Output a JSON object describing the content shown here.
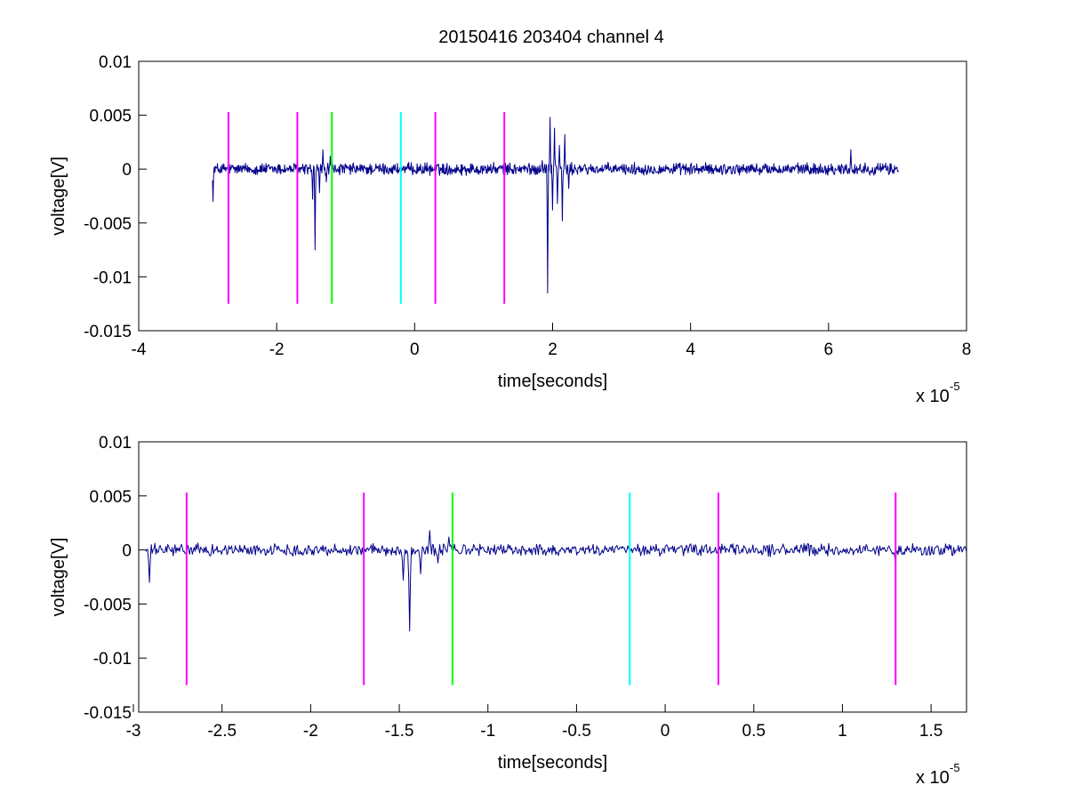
{
  "figure": {
    "title": "20150416 203404 channel 4"
  },
  "chart_data": [
    {
      "type": "line",
      "title": "20150416 203404 channel 4",
      "xlabel": "time[seconds]",
      "ylabel": "voltage[V]",
      "x_exponent_label": "x 10",
      "x_exponent_power": "-5",
      "xlim": [
        -4e-05,
        8e-05
      ],
      "ylim": [
        -0.015,
        0.01
      ],
      "xticks": [
        -4e-05,
        -2e-05,
        0,
        2e-05,
        4e-05,
        6e-05,
        8e-05
      ],
      "xtick_labels": [
        "-4",
        "-2",
        "0",
        "2",
        "4",
        "6",
        "8"
      ],
      "yticks": [
        -0.015,
        -0.01,
        -0.005,
        0,
        0.005,
        0.01
      ],
      "ytick_labels": [
        "-0.015",
        "-0.01",
        "-0.005",
        "0",
        "0.005",
        "0.01"
      ],
      "grid": false,
      "signal_color": "#00008b",
      "signal": {
        "t_start": -2.93e-05,
        "t_end": 7.02e-05,
        "baseline": 0,
        "events": [
          {
            "t": -2.92e-05,
            "v": -0.003
          },
          {
            "t": -1.48e-05,
            "v": -0.0028
          },
          {
            "t": -1.44e-05,
            "v": -0.0075
          },
          {
            "t": -1.38e-05,
            "v": -0.0022
          },
          {
            "t": -1.33e-05,
            "v": 0.0018
          },
          {
            "t": -1.28e-05,
            "v": -0.0012
          },
          {
            "t": -1.22e-05,
            "v": 0.0012
          },
          {
            "t": 1.85e-05,
            "v": 0.0008
          },
          {
            "t": 1.93e-05,
            "v": -0.0115
          },
          {
            "t": 1.96e-05,
            "v": 0.0048
          },
          {
            "t": 2e-05,
            "v": -0.0038
          },
          {
            "t": 2.03e-05,
            "v": 0.0038
          },
          {
            "t": 2.07e-05,
            "v": -0.0032
          },
          {
            "t": 2.1e-05,
            "v": 0.0022
          },
          {
            "t": 2.14e-05,
            "v": -0.0048
          },
          {
            "t": 2.18e-05,
            "v": 0.0032
          },
          {
            "t": 2.23e-05,
            "v": -0.0018
          },
          {
            "t": 6.32e-05,
            "v": 0.0018
          }
        ]
      },
      "markers": [
        {
          "x": -2.7e-05,
          "y_min": -0.0125,
          "y_max": 0.0053,
          "color": "#ff00ff"
        },
        {
          "x": -1.7e-05,
          "y_min": -0.0125,
          "y_max": 0.0053,
          "color": "#ff00ff"
        },
        {
          "x": -1.2e-05,
          "y_min": -0.0125,
          "y_max": 0.0053,
          "color": "#00ff00"
        },
        {
          "x": -2e-06,
          "y_min": -0.0125,
          "y_max": 0.0053,
          "color": "#00ffff"
        },
        {
          "x": 3e-06,
          "y_min": -0.0125,
          "y_max": 0.0053,
          "color": "#ff00ff"
        },
        {
          "x": 1.3e-05,
          "y_min": -0.0125,
          "y_max": 0.0053,
          "color": "#ff00ff"
        }
      ]
    },
    {
      "type": "line",
      "title": "",
      "xlabel": "time[seconds]",
      "ylabel": "voltage[V]",
      "x_exponent_label": "x 10",
      "x_exponent_power": "-5",
      "xlim": [
        -2.97e-05,
        1.7e-05
      ],
      "ylim": [
        -0.015,
        0.01
      ],
      "xticks": [
        -3e-05,
        -2.5e-05,
        -2e-05,
        -1.5e-05,
        -1e-05,
        -5e-06,
        0,
        5e-06,
        1e-05,
        1.5e-05
      ],
      "xtick_labels": [
        "-3",
        "-2.5",
        "-2",
        "-1.5",
        "-1",
        "-0.5",
        "0",
        "0.5",
        "1",
        "1.5"
      ],
      "yticks": [
        -0.015,
        -0.01,
        -0.005,
        0,
        0.005,
        0.01
      ],
      "ytick_labels": [
        "-0.015",
        "-0.01",
        "-0.005",
        "0",
        "0.005",
        "0.01"
      ],
      "grid": false,
      "signal_color": "#00008b",
      "signal": {
        "t_start": -2.93e-05,
        "t_end": 1.7e-05,
        "baseline": 0,
        "events": [
          {
            "t": -2.91e-05,
            "v": -0.003
          },
          {
            "t": -1.48e-05,
            "v": -0.0028
          },
          {
            "t": -1.44e-05,
            "v": -0.0075
          },
          {
            "t": -1.38e-05,
            "v": -0.0022
          },
          {
            "t": -1.33e-05,
            "v": 0.0018
          },
          {
            "t": -1.28e-05,
            "v": -0.0012
          },
          {
            "t": -1.22e-05,
            "v": 0.0012
          },
          {
            "t": 1.3e-05,
            "v": -0.0011
          }
        ]
      },
      "markers": [
        {
          "x": -2.7e-05,
          "y_min": -0.0125,
          "y_max": 0.0053,
          "color": "#ff00ff"
        },
        {
          "x": -1.7e-05,
          "y_min": -0.0125,
          "y_max": 0.0053,
          "color": "#ff00ff"
        },
        {
          "x": -1.2e-05,
          "y_min": -0.0125,
          "y_max": 0.0053,
          "color": "#00ff00"
        },
        {
          "x": -2e-06,
          "y_min": -0.0125,
          "y_max": 0.0053,
          "color": "#00ffff"
        },
        {
          "x": 3e-06,
          "y_min": -0.0125,
          "y_max": 0.0053,
          "color": "#ff00ff"
        },
        {
          "x": 1.3e-05,
          "y_min": -0.0125,
          "y_max": 0.0053,
          "color": "#ff00ff"
        }
      ]
    }
  ]
}
